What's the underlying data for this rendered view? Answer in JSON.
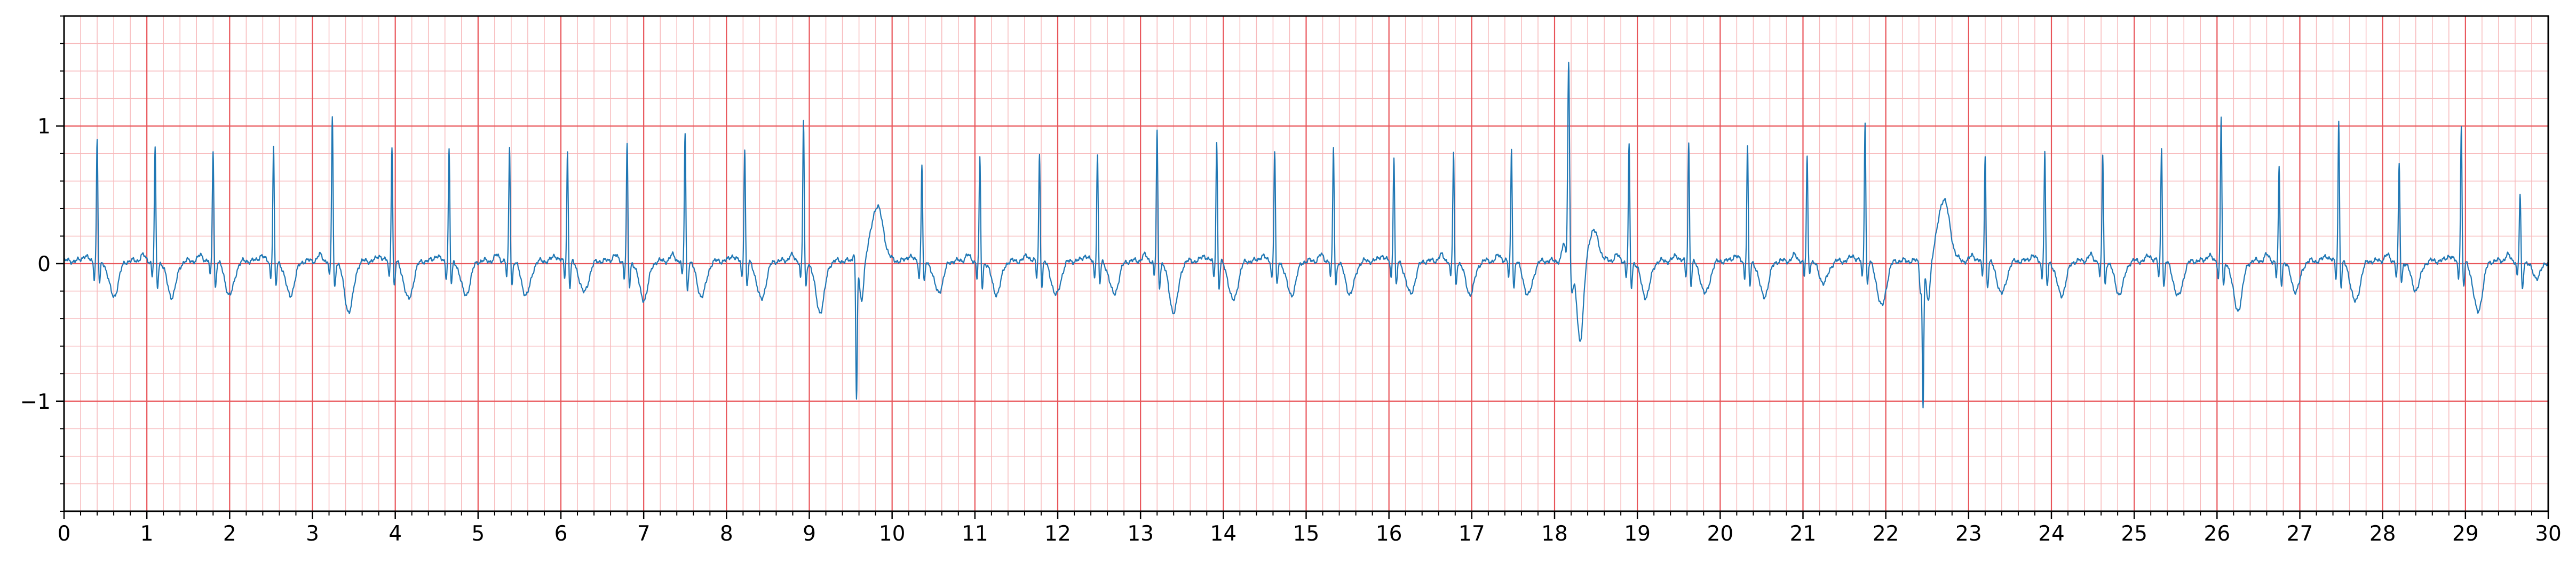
{
  "chart_data": {
    "type": "line",
    "title": "",
    "xlabel": "",
    "ylabel": "",
    "xlim": [
      0,
      30
    ],
    "ylim": [
      -1.8,
      1.8
    ],
    "x_ticks": [
      0,
      1,
      2,
      3,
      4,
      5,
      6,
      7,
      8,
      9,
      10,
      11,
      12,
      13,
      14,
      15,
      16,
      17,
      18,
      19,
      20,
      21,
      22,
      23,
      24,
      25,
      26,
      27,
      28,
      29,
      30
    ],
    "x_tick_labels": [
      "0",
      "1",
      "2",
      "3",
      "4",
      "5",
      "6",
      "7",
      "8",
      "9",
      "10",
      "11",
      "12",
      "13",
      "14",
      "15",
      "16",
      "17",
      "18",
      "19",
      "20",
      "21",
      "22",
      "23",
      "24",
      "25",
      "26",
      "27",
      "28",
      "29",
      "30"
    ],
    "y_ticks": [
      -1,
      0,
      1
    ],
    "y_tick_labels": [
      "−1",
      "0",
      "1"
    ],
    "grid": true,
    "grid_major": {
      "x_step": 1,
      "y_step": 1,
      "color": "#e8555a"
    },
    "grid_minor": {
      "x_step": 0.2,
      "y_step": 0.2,
      "color": "#f7b9bb"
    },
    "series": [
      {
        "color": "#1f77b4",
        "beats": [
          {
            "t": 0.4,
            "r": 0.88,
            "s": -0.22,
            "twave": -0.26
          },
          {
            "t": 1.1,
            "r": 0.82,
            "s": -0.24,
            "twave": -0.26
          },
          {
            "t": 1.8,
            "r": 0.82,
            "s": -0.24,
            "twave": -0.25
          },
          {
            "t": 2.53,
            "r": 0.83,
            "s": -0.24,
            "twave": -0.25
          },
          {
            "t": 3.24,
            "r": 1.06,
            "s": -0.24,
            "twave": -0.37
          },
          {
            "t": 3.96,
            "r": 0.85,
            "s": -0.24,
            "twave": -0.28
          },
          {
            "t": 4.65,
            "r": 0.82,
            "s": -0.22,
            "twave": -0.25
          },
          {
            "t": 5.38,
            "r": 0.83,
            "s": -0.22,
            "twave": -0.25
          },
          {
            "t": 6.08,
            "r": 0.8,
            "s": -0.24,
            "twave": -0.23
          },
          {
            "t": 6.8,
            "r": 0.84,
            "s": -0.24,
            "twave": -0.28
          },
          {
            "t": 7.5,
            "r": 0.94,
            "s": -0.26,
            "twave": -0.26
          },
          {
            "t": 8.22,
            "r": 0.83,
            "s": -0.24,
            "twave": -0.28
          },
          {
            "t": 8.93,
            "r": 1.02,
            "s": -0.24,
            "twave": -0.37
          },
          {
            "t": 10.36,
            "r": 0.71,
            "s": -0.22,
            "twave": -0.23
          },
          {
            "t": 11.06,
            "r": 0.74,
            "s": -0.25,
            "twave": -0.24
          },
          {
            "t": 11.78,
            "r": 0.78,
            "s": -0.23,
            "twave": -0.25
          },
          {
            "t": 12.48,
            "r": 0.78,
            "s": -0.22,
            "twave": -0.24
          },
          {
            "t": 13.2,
            "r": 0.95,
            "s": -0.24,
            "twave": -0.37
          },
          {
            "t": 13.92,
            "r": 0.88,
            "s": -0.25,
            "twave": -0.29
          },
          {
            "t": 14.62,
            "r": 0.81,
            "s": -0.24,
            "twave": -0.25
          },
          {
            "t": 15.33,
            "r": 0.83,
            "s": -0.22,
            "twave": -0.24
          },
          {
            "t": 16.06,
            "r": 0.77,
            "s": -0.24,
            "twave": -0.24
          },
          {
            "t": 16.78,
            "r": 0.79,
            "s": -0.23,
            "twave": -0.24
          },
          {
            "t": 17.48,
            "r": 0.82,
            "s": -0.24,
            "twave": -0.25
          },
          {
            "t": 18.9,
            "r": 0.84,
            "s": -0.24,
            "twave": -0.26
          },
          {
            "t": 19.62,
            "r": 0.87,
            "s": -0.22,
            "twave": -0.24
          },
          {
            "t": 20.33,
            "r": 0.83,
            "s": -0.24,
            "twave": -0.26
          },
          {
            "t": 21.05,
            "r": 0.75,
            "s": -0.12,
            "twave": -0.16
          },
          {
            "t": 21.75,
            "r": 1.03,
            "s": -0.22,
            "twave": -0.33
          },
          {
            "t": 23.2,
            "r": 0.77,
            "s": -0.24,
            "twave": -0.24
          },
          {
            "t": 23.92,
            "r": 0.79,
            "s": -0.24,
            "twave": -0.25
          },
          {
            "t": 24.62,
            "r": 0.77,
            "s": -0.22,
            "twave": -0.24
          },
          {
            "t": 25.33,
            "r": 0.84,
            "s": -0.24,
            "twave": -0.26
          },
          {
            "t": 26.05,
            "r": 1.05,
            "s": -0.25,
            "twave": -0.36
          },
          {
            "t": 26.75,
            "r": 0.67,
            "s": -0.22,
            "twave": -0.22
          },
          {
            "t": 27.47,
            "r": 1.02,
            "s": -0.24,
            "twave": -0.3
          },
          {
            "t": 28.2,
            "r": 0.71,
            "s": -0.21,
            "twave": -0.21
          },
          {
            "t": 28.95,
            "r": 0.98,
            "s": -0.24,
            "twave": -0.37
          },
          {
            "t": 29.66,
            "r": 0.49,
            "s": -0.26,
            "twave": -0.12
          }
        ],
        "ectopic_beats": [
          {
            "t": 9.57,
            "r": 0.07,
            "s": -1.0,
            "twave": 0.4
          },
          {
            "t": 18.17,
            "r": 1.48,
            "s": -0.1,
            "twave": -0.58
          },
          {
            "t": 22.45,
            "r": -0.22,
            "s": -1.04,
            "twave": 0.45
          }
        ]
      }
    ]
  }
}
